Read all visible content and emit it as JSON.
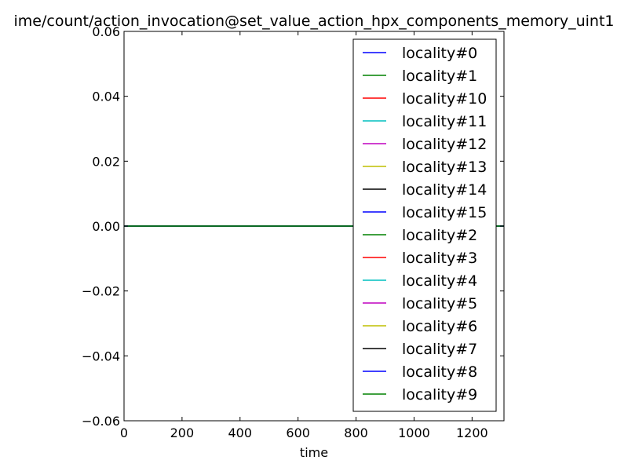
{
  "chart_data": {
    "type": "line",
    "title": "ime/count/action_invocation@set_value_action_hpx_components_memory_uint1",
    "xlabel": "time",
    "ylabel": "",
    "xlim": [
      0,
      1310
    ],
    "ylim": [
      -0.06,
      0.06
    ],
    "x_ticks": [
      0,
      200,
      400,
      600,
      800,
      1000,
      1200
    ],
    "x_tick_labels": [
      "0",
      "200",
      "400",
      "600",
      "800",
      "1000",
      "1200"
    ],
    "y_ticks": [
      0.06,
      0.04,
      0.02,
      0.0,
      -0.02,
      -0.04,
      -0.06
    ],
    "y_tick_labels": [
      "0.06",
      "0.04",
      "0.02",
      "0.00",
      "−0.02",
      "−0.04",
      "−0.06"
    ],
    "grid": false,
    "legend_position": "top-right",
    "series": [
      {
        "name": "locality#0",
        "color": "#0000ff",
        "x": [
          0,
          1310
        ],
        "y": [
          0,
          0
        ]
      },
      {
        "name": "locality#1",
        "color": "#008000",
        "x": [
          0,
          1310
        ],
        "y": [
          0,
          0
        ]
      },
      {
        "name": "locality#10",
        "color": "#ff0000",
        "x": [
          0,
          1310
        ],
        "y": [
          0,
          0
        ]
      },
      {
        "name": "locality#11",
        "color": "#00bfbf",
        "x": [
          0,
          1310
        ],
        "y": [
          0,
          0
        ]
      },
      {
        "name": "locality#12",
        "color": "#bf00bf",
        "x": [
          0,
          1310
        ],
        "y": [
          0,
          0
        ]
      },
      {
        "name": "locality#13",
        "color": "#bfbf00",
        "x": [
          0,
          1310
        ],
        "y": [
          0,
          0
        ]
      },
      {
        "name": "locality#14",
        "color": "#000000",
        "x": [
          0,
          1310
        ],
        "y": [
          0,
          0
        ]
      },
      {
        "name": "locality#15",
        "color": "#0000ff",
        "x": [
          0,
          1310
        ],
        "y": [
          0,
          0
        ]
      },
      {
        "name": "locality#2",
        "color": "#008000",
        "x": [
          0,
          1310
        ],
        "y": [
          0,
          0
        ]
      },
      {
        "name": "locality#3",
        "color": "#ff0000",
        "x": [
          0,
          1310
        ],
        "y": [
          0,
          0
        ]
      },
      {
        "name": "locality#4",
        "color": "#00bfbf",
        "x": [
          0,
          1310
        ],
        "y": [
          0,
          0
        ]
      },
      {
        "name": "locality#5",
        "color": "#bf00bf",
        "x": [
          0,
          1310
        ],
        "y": [
          0,
          0
        ]
      },
      {
        "name": "locality#6",
        "color": "#bfbf00",
        "x": [
          0,
          1310
        ],
        "y": [
          0,
          0
        ]
      },
      {
        "name": "locality#7",
        "color": "#000000",
        "x": [
          0,
          1310
        ],
        "y": [
          0,
          0
        ]
      },
      {
        "name": "locality#8",
        "color": "#0000ff",
        "x": [
          0,
          1310
        ],
        "y": [
          0,
          0
        ]
      },
      {
        "name": "locality#9",
        "color": "#008000",
        "x": [
          0,
          1310
        ],
        "y": [
          0,
          0
        ]
      }
    ]
  }
}
